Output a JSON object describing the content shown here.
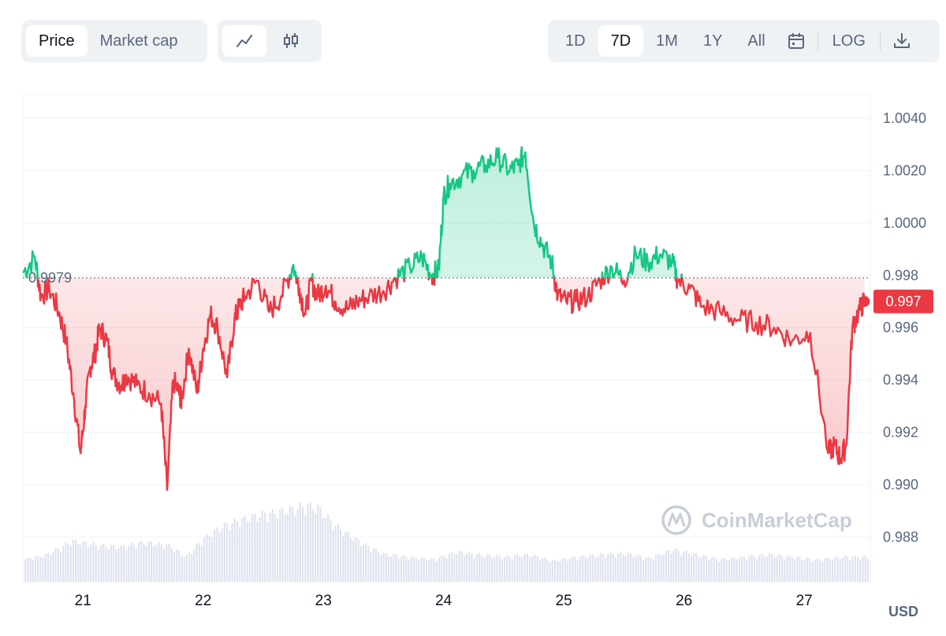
{
  "toolbar": {
    "metric_tabs": [
      {
        "label": "Price",
        "active": true
      },
      {
        "label": "Market cap",
        "active": false
      }
    ],
    "chart_type_icons": [
      "line-chart-icon",
      "candlestick-icon"
    ],
    "ranges": [
      {
        "label": "1D",
        "active": false
      },
      {
        "label": "7D",
        "active": true
      },
      {
        "label": "1M",
        "active": false
      },
      {
        "label": "1Y",
        "active": false
      },
      {
        "label": "All",
        "active": false
      }
    ],
    "log_label": "LOG",
    "calendar_icon": "calendar-icon",
    "download_icon": "download-icon"
  },
  "watermark": "CoinMarketCap",
  "currency": "USD",
  "colors": {
    "up": "#16c784",
    "down": "#ea3943",
    "volume": "#dfe3ee",
    "grid": "#eff2f5"
  },
  "chart_data": {
    "type": "line",
    "reference_price": 0.9979,
    "reference_label": "0.9979",
    "current_price_label": "0.997",
    "y_ticks": [
      "1.0040",
      "1.0020",
      "1.0000",
      "0.998",
      "0.996",
      "0.994",
      "0.992",
      "0.990",
      "0.988"
    ],
    "y_tick_values": [
      1.004,
      1.002,
      1.0,
      0.998,
      0.996,
      0.994,
      0.992,
      0.99,
      0.988
    ],
    "ylim": [
      0.9863,
      1.0049
    ],
    "x_ticks": [
      "21",
      "22",
      "23",
      "24",
      "25",
      "26",
      "27"
    ],
    "x_tick_values": [
      21,
      22,
      23,
      24,
      25,
      26,
      27
    ],
    "xlim": [
      20.5,
      27.55
    ],
    "grid": true,
    "series": [
      {
        "x": [
          20.5,
          20.6,
          20.65,
          20.72,
          20.8,
          20.86,
          20.92,
          20.98,
          21.02,
          21.06,
          21.1,
          21.14,
          21.2,
          21.25,
          21.32,
          21.36,
          21.45,
          21.55,
          21.65,
          21.7,
          21.75,
          21.8,
          21.82,
          21.88,
          21.95,
          22.0,
          22.06,
          22.12,
          22.2,
          22.26,
          22.3,
          22.35,
          22.45,
          22.55,
          22.65,
          22.75,
          22.8,
          22.85,
          22.9,
          22.95,
          23.02,
          23.1,
          23.2,
          23.28,
          23.38,
          23.5,
          23.6,
          23.72,
          23.82,
          23.9,
          23.96,
          24.0,
          24.05,
          24.15,
          24.25,
          24.35,
          24.45,
          24.55,
          24.62,
          24.68,
          24.75,
          24.82,
          24.9,
          24.95,
          25.02,
          25.1,
          25.2,
          25.3,
          25.4,
          25.5,
          25.6,
          25.7,
          25.8,
          25.9,
          25.95,
          26.05,
          26.15,
          26.3,
          26.45,
          26.6,
          26.75,
          26.9,
          27.05,
          27.2,
          27.25,
          27.3,
          27.35,
          27.4,
          27.45,
          27.5
        ],
        "y": [
          0.9981,
          0.9987,
          0.9972,
          0.9975,
          0.9966,
          0.9955,
          0.9935,
          0.9912,
          0.993,
          0.9945,
          0.995,
          0.996,
          0.9955,
          0.9942,
          0.9938,
          0.9942,
          0.9938,
          0.9935,
          0.9931,
          0.9898,
          0.994,
          0.9935,
          0.9932,
          0.9952,
          0.9935,
          0.9952,
          0.9965,
          0.996,
          0.9941,
          0.9963,
          0.9968,
          0.9972,
          0.9978,
          0.9966,
          0.9972,
          0.9984,
          0.9975,
          0.9965,
          0.9978,
          0.9972,
          0.9976,
          0.997,
          0.9967,
          0.997,
          0.9972,
          0.9974,
          0.9979,
          0.9983,
          0.9987,
          0.998,
          0.9982,
          1.001,
          1.0015,
          1.0018,
          1.002,
          1.0022,
          1.0025,
          1.002,
          1.0022,
          1.0027,
          1.0,
          0.9992,
          0.9985,
          0.9972,
          0.997,
          0.997,
          0.9972,
          0.9978,
          0.9983,
          0.9978,
          0.9988,
          0.9985,
          0.9988,
          0.9985,
          0.9978,
          0.9975,
          0.9968,
          0.9966,
          0.9963,
          0.9962,
          0.996,
          0.9955,
          0.9958,
          0.9912,
          0.9915,
          0.991,
          0.9915,
          0.996,
          0.9966,
          0.997
        ]
      }
    ],
    "volume": {
      "x": [
        20.5,
        20.7,
        20.9,
        21.1,
        21.3,
        21.5,
        21.7,
        21.85,
        22.0,
        22.15,
        22.3,
        22.5,
        22.7,
        22.85,
        22.95,
        23.1,
        23.3,
        23.5,
        23.7,
        23.9,
        24.1,
        24.3,
        24.5,
        24.7,
        24.9,
        25.1,
        25.3,
        25.5,
        25.7,
        25.9,
        26.1,
        26.3,
        26.5,
        26.7,
        26.9,
        27.1,
        27.3,
        27.5
      ],
      "level": [
        0.18,
        0.22,
        0.33,
        0.3,
        0.28,
        0.32,
        0.3,
        0.2,
        0.35,
        0.45,
        0.5,
        0.55,
        0.58,
        0.62,
        0.6,
        0.45,
        0.32,
        0.22,
        0.2,
        0.18,
        0.24,
        0.22,
        0.2,
        0.22,
        0.17,
        0.2,
        0.22,
        0.23,
        0.19,
        0.26,
        0.22,
        0.18,
        0.2,
        0.22,
        0.2,
        0.18,
        0.2,
        0.2
      ]
    }
  }
}
